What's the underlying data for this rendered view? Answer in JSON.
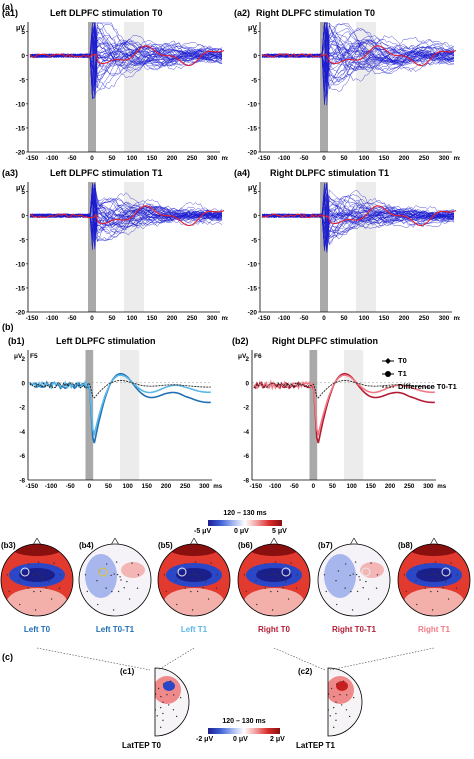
{
  "section_labels": {
    "a": "(a)",
    "b": "(b)",
    "c": "(c)"
  },
  "panels_a": [
    {
      "id": "(a1)",
      "title": "Left DLPFC stimulation T0",
      "seed": 11,
      "amp": 1.0
    },
    {
      "id": "(a2)",
      "title": "Right DLPFC stimulation T0",
      "seed": 23,
      "amp": 1.15
    },
    {
      "id": "(a3)",
      "title": "Left DLPFC stimulation T1",
      "seed": 37,
      "amp": 0.8
    },
    {
      "id": "(a4)",
      "title": "Right DLPFC stimulation T1",
      "seed": 51,
      "amp": 0.85
    }
  ],
  "axes_a": {
    "yunit": "μV",
    "yticks": [
      "5",
      "0",
      "-5",
      "-10",
      "-15",
      "-20"
    ],
    "xticks": [
      "-150",
      "-100",
      "-50",
      "0",
      "50",
      "100",
      "150",
      "200",
      "250",
      "300",
      "ms"
    ]
  },
  "panels_b": [
    {
      "id": "(b1)",
      "title": "Left DLPFC stimulation",
      "channel": "F5",
      "c0": "#1f6fb5",
      "c1": "#5bb8e8",
      "cd": "#222222"
    },
    {
      "id": "(b2)",
      "title": "Right DLPFC stimulation",
      "channel": "F6",
      "c0": "#b31b34",
      "c1": "#f07a84",
      "cd": "#222222"
    }
  ],
  "axes_b": {
    "yunit": "μV",
    "yticks": [
      "2",
      "0",
      "-2",
      "-4",
      "-6",
      "-8"
    ],
    "xticks": [
      "-150",
      "-100",
      "-50",
      "0",
      "50",
      "100",
      "150",
      "200",
      "250",
      "300",
      "ms"
    ]
  },
  "legend_b": {
    "t0": "T0",
    "t1": "T1",
    "diff": "Difference T0-T1"
  },
  "colorbar_top": {
    "range": "120 – 130 ms",
    "ticks": [
      "-5 μV",
      "0 μV",
      "5 μV"
    ]
  },
  "topos": [
    {
      "id": "(b3)",
      "label": "Left T0",
      "color": "#1f6fb5",
      "kind": "full"
    },
    {
      "id": "(b4)",
      "label": "Left T0-T1",
      "color": "#1f6fb5",
      "kind": "diff"
    },
    {
      "id": "(b5)",
      "label": "Left T1",
      "color": "#5bb8e8",
      "kind": "full"
    },
    {
      "id": "(b6)",
      "label": "Right T0",
      "color": "#b31b34",
      "kind": "full"
    },
    {
      "id": "(b7)",
      "label": "Right T0-T1",
      "color": "#b31b34",
      "kind": "diff"
    },
    {
      "id": "(b8)",
      "label": "Right T1",
      "color": "#f07a84",
      "kind": "full"
    }
  ],
  "panels_c": [
    {
      "id": "(c1)",
      "label": "LatTEP T0"
    },
    {
      "id": "(c2)",
      "label": "LatTEP T1"
    }
  ],
  "colorbar_bottom": {
    "range": "120 – 130 ms",
    "ticks": [
      "-2 μV",
      "0 μV",
      "2 μV"
    ]
  }
}
